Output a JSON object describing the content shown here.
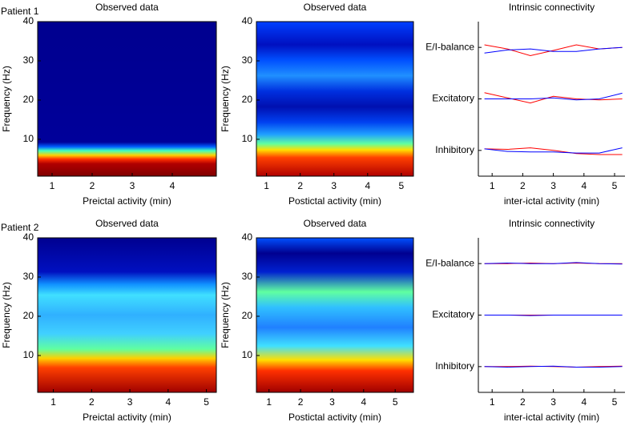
{
  "chart_data": [
    {
      "type": "spectrogram",
      "annotation": "Patient 1",
      "title": "Observed data",
      "xlabel": "Preictal activity (min)",
      "ylabel": "Frequency (Hz)",
      "xlim": [
        0.64,
        5.1
      ],
      "ylim": [
        0.6,
        40
      ],
      "xticks": [
        1,
        2,
        3,
        4
      ],
      "yticks": [
        10,
        20,
        30,
        40
      ]
    },
    {
      "type": "spectrogram",
      "title": "Observed data",
      "xlabel": "Postictal activity (min)",
      "ylabel": "Frequency (Hz)",
      "xlim": [
        0.7,
        5.36
      ],
      "ylim": [
        0.6,
        40
      ],
      "xticks": [
        1,
        2,
        3,
        4,
        5
      ],
      "yticks": [
        10,
        20,
        30,
        40
      ]
    },
    {
      "type": "line",
      "title": "Intrinsic connectivity",
      "xlabel": "inter-ictal activity (min)",
      "xlim": [
        0.55,
        5.34
      ],
      "ylim": [
        0,
        3
      ],
      "xticks": [
        1,
        2,
        3,
        4,
        5
      ],
      "yticks": [
        {
          "value": 0.5,
          "label": "Inhibitory"
        },
        {
          "value": 1.5,
          "label": "Excitatory"
        },
        {
          "value": 2.5,
          "label": "E/I-balance"
        }
      ],
      "x": [
        0.75,
        1.5,
        2.25,
        3,
        3.75,
        4.5,
        5.25
      ],
      "series": [
        {
          "color": "#ff0000",
          "values": [
            2.55,
            2.47,
            2.34,
            2.44,
            2.55,
            2.47,
            2.5
          ]
        },
        {
          "color": "#0000ff",
          "values": [
            2.39,
            2.45,
            2.47,
            2.42,
            2.42,
            2.47,
            2.5
          ]
        },
        {
          "color": "#ff0000",
          "values": [
            1.62,
            1.52,
            1.42,
            1.55,
            1.5,
            1.48,
            1.5
          ]
        },
        {
          "color": "#0000ff",
          "values": [
            1.5,
            1.5,
            1.5,
            1.52,
            1.48,
            1.5,
            1.61
          ]
        },
        {
          "color": "#ff0000",
          "values": [
            0.53,
            0.52,
            0.55,
            0.5,
            0.44,
            0.42,
            0.42
          ]
        },
        {
          "color": "#0000ff",
          "values": [
            0.53,
            0.48,
            0.47,
            0.47,
            0.45,
            0.45,
            0.55
          ]
        }
      ]
    },
    {
      "type": "spectrogram",
      "annotation": "Patient 2",
      "title": "Observed data",
      "xlabel": "Preictal activity (min)",
      "ylabel": "Frequency (Hz)",
      "xlim": [
        0.59,
        5.26
      ],
      "ylim": [
        0.6,
        40
      ],
      "xticks": [
        1,
        2,
        3,
        4,
        5
      ],
      "yticks": [
        10,
        20,
        30,
        40
      ]
    },
    {
      "type": "spectrogram",
      "title": "Observed data",
      "xlabel": "Postictal activity (min)",
      "ylabel": "Frequency (Hz)",
      "xlim": [
        0.6,
        5.58
      ],
      "ylim": [
        0.6,
        40
      ],
      "xticks": [
        1,
        2,
        3,
        4,
        5
      ],
      "yticks": [
        10,
        20,
        30,
        40
      ]
    },
    {
      "type": "line",
      "title": "Intrinsic connectivity",
      "xlabel": "inter-ictal activity (min)",
      "xlim": [
        0.55,
        5.34
      ],
      "ylim": [
        0,
        3
      ],
      "xticks": [
        1,
        2,
        3,
        4,
        5
      ],
      "yticks": [
        {
          "value": 0.5,
          "label": "Inhibitory"
        },
        {
          "value": 1.5,
          "label": "Excitatory"
        },
        {
          "value": 2.5,
          "label": "E/I-balance"
        }
      ],
      "x": [
        0.75,
        1.5,
        2.25,
        3,
        3.75,
        4.5,
        5.25
      ],
      "series": [
        {
          "color": "#ff0000",
          "values": [
            2.5,
            2.5,
            2.51,
            2.5,
            2.51,
            2.5,
            2.5
          ]
        },
        {
          "color": "#0000ff",
          "values": [
            2.5,
            2.51,
            2.5,
            2.5,
            2.52,
            2.5,
            2.49
          ]
        },
        {
          "color": "#ff0000",
          "values": [
            1.5,
            1.5,
            1.5,
            1.5,
            1.5,
            1.5,
            1.5
          ]
        },
        {
          "color": "#0000ff",
          "values": [
            1.5,
            1.5,
            1.49,
            1.5,
            1.5,
            1.5,
            1.5
          ]
        },
        {
          "color": "#ff0000",
          "values": [
            0.5,
            0.5,
            0.51,
            0.5,
            0.49,
            0.5,
            0.51
          ]
        },
        {
          "color": "#0000ff",
          "values": [
            0.5,
            0.49,
            0.5,
            0.51,
            0.49,
            0.49,
            0.5
          ]
        }
      ]
    }
  ]
}
